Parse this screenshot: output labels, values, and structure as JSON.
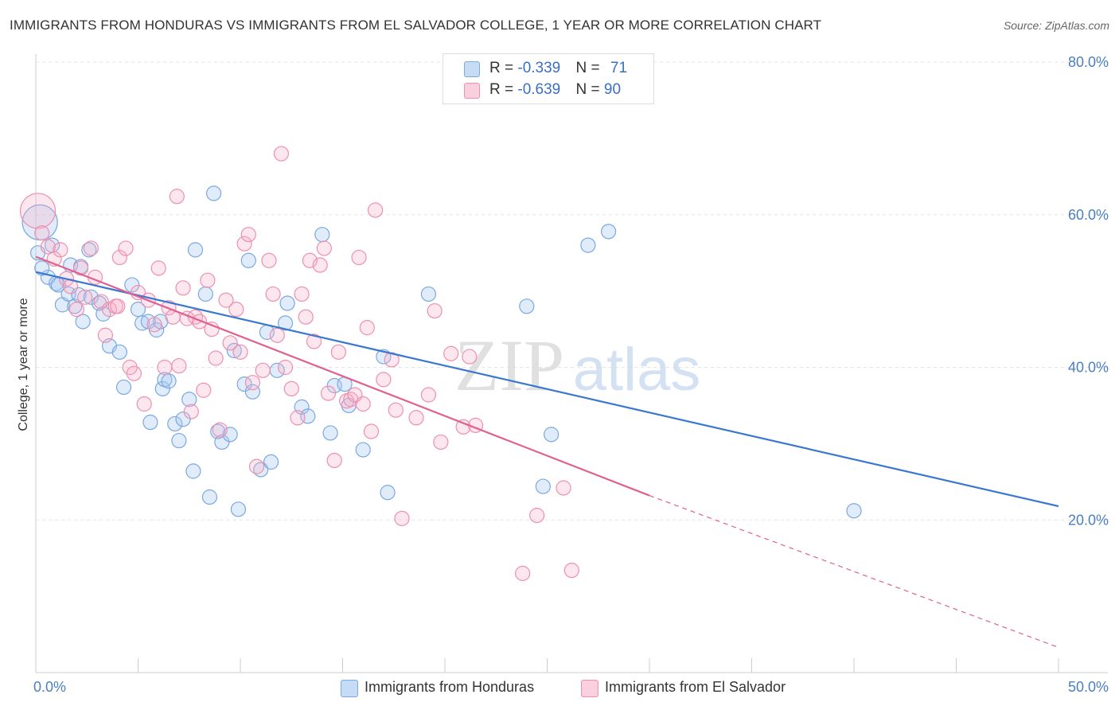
{
  "title": "IMMIGRANTS FROM HONDURAS VS IMMIGRANTS FROM EL SALVADOR COLLEGE, 1 YEAR OR MORE CORRELATION CHART",
  "source": "Source: ZipAtlas.com",
  "watermark": {
    "zip": "ZIP",
    "atlas": "atlas"
  },
  "legend": {
    "rows": [
      {
        "r_label": "R = ",
        "r_value": "-0.339",
        "n_label": "N = ",
        "n_value": "71",
        "color": "#a8c8f0"
      },
      {
        "r_label": "R = ",
        "r_value": "-0.639",
        "n_label": "N = ",
        "n_value": "90",
        "color": "#f5b0c8"
      }
    ]
  },
  "bottom_legend": [
    "Immigrants from Honduras",
    "Immigrants from El Salvador"
  ],
  "chart_data": {
    "type": "scatter",
    "xlabel": "",
    "ylabel": "College, 1 year or more",
    "xlim": [
      0,
      50
    ],
    "ylim": [
      0,
      80
    ],
    "x_tick_labels": [
      "0.0%",
      "50.0%"
    ],
    "y_ticks": [
      20,
      40,
      60,
      80
    ],
    "y_tick_labels": [
      "20.0%",
      "40.0%",
      "60.0%",
      "80.0%"
    ],
    "grid": true,
    "series": [
      {
        "name": "Immigrants from Honduras",
        "color": "#a8c8f0",
        "line_color": "#3a78d0",
        "trend": {
          "x": [
            0,
            50
          ],
          "y": [
            52.5,
            21.8
          ]
        },
        "points": [
          [
            0.2,
            59.0
          ],
          [
            0.6,
            51.8
          ],
          [
            0.8,
            56.0
          ],
          [
            1.0,
            51.0
          ],
          [
            1.1,
            50.8
          ],
          [
            1.3,
            48.2
          ],
          [
            1.6,
            49.6
          ],
          [
            1.7,
            53.4
          ],
          [
            1.9,
            48.0
          ],
          [
            2.1,
            49.5
          ],
          [
            2.2,
            53.2
          ],
          [
            2.3,
            46.0
          ],
          [
            2.6,
            55.4
          ],
          [
            2.7,
            49.2
          ],
          [
            3.1,
            48.4
          ],
          [
            3.3,
            47.0
          ],
          [
            3.6,
            42.8
          ],
          [
            4.1,
            42.0
          ],
          [
            4.3,
            37.4
          ],
          [
            4.7,
            50.8
          ],
          [
            5.0,
            47.6
          ],
          [
            5.2,
            45.8
          ],
          [
            5.5,
            46.0
          ],
          [
            5.6,
            32.8
          ],
          [
            5.9,
            44.9
          ],
          [
            6.1,
            46.0
          ],
          [
            6.2,
            37.2
          ],
          [
            6.3,
            38.4
          ],
          [
            6.5,
            38.2
          ],
          [
            6.8,
            32.6
          ],
          [
            7.0,
            30.4
          ],
          [
            7.2,
            33.2
          ],
          [
            7.5,
            35.8
          ],
          [
            7.7,
            26.4
          ],
          [
            7.8,
            55.4
          ],
          [
            8.3,
            49.6
          ],
          [
            8.5,
            23.0
          ],
          [
            8.7,
            62.8
          ],
          [
            8.9,
            31.6
          ],
          [
            9.1,
            30.2
          ],
          [
            9.5,
            31.2
          ],
          [
            9.7,
            42.2
          ],
          [
            9.9,
            21.4
          ],
          [
            10.2,
            37.8
          ],
          [
            10.4,
            54.0
          ],
          [
            10.6,
            36.8
          ],
          [
            11.0,
            26.6
          ],
          [
            11.3,
            44.6
          ],
          [
            11.5,
            27.6
          ],
          [
            11.8,
            39.6
          ],
          [
            12.2,
            45.8
          ],
          [
            12.3,
            48.4
          ],
          [
            13.0,
            34.8
          ],
          [
            13.3,
            33.6
          ],
          [
            14.0,
            57.4
          ],
          [
            14.4,
            31.4
          ],
          [
            14.6,
            37.6
          ],
          [
            15.1,
            37.8
          ],
          [
            15.3,
            35.0
          ],
          [
            16.0,
            29.2
          ],
          [
            17.0,
            41.4
          ],
          [
            17.2,
            23.6
          ],
          [
            19.2,
            49.6
          ],
          [
            24.0,
            48.0
          ],
          [
            24.8,
            24.4
          ],
          [
            25.2,
            31.2
          ],
          [
            27.0,
            56.0
          ],
          [
            28.0,
            57.8
          ],
          [
            40.0,
            21.2
          ],
          [
            0.1,
            55.0
          ],
          [
            0.3,
            53.0
          ]
        ]
      },
      {
        "name": "Immigrants from El Salvador",
        "color": "#f5b0c8",
        "line_color": "#e06090",
        "trend": {
          "x": [
            0,
            30
          ],
          "y": [
            54.5,
            23.2
          ]
        },
        "trend_dashed": {
          "x": [
            30,
            50
          ],
          "y": [
            23.2,
            3.3
          ]
        },
        "points": [
          [
            0.1,
            60.5
          ],
          [
            0.3,
            57.6
          ],
          [
            0.6,
            55.8
          ],
          [
            0.9,
            54.2
          ],
          [
            1.2,
            55.4
          ],
          [
            1.5,
            51.6
          ],
          [
            1.7,
            50.6
          ],
          [
            2.0,
            47.6
          ],
          [
            2.2,
            53.0
          ],
          [
            2.4,
            49.2
          ],
          [
            2.7,
            55.6
          ],
          [
            2.9,
            51.8
          ],
          [
            3.2,
            48.6
          ],
          [
            3.4,
            44.2
          ],
          [
            3.6,
            47.6
          ],
          [
            3.9,
            48.0
          ],
          [
            4.1,
            54.4
          ],
          [
            4.4,
            55.6
          ],
          [
            4.6,
            40.0
          ],
          [
            4.8,
            39.2
          ],
          [
            5.0,
            49.8
          ],
          [
            5.3,
            35.2
          ],
          [
            5.5,
            48.8
          ],
          [
            5.8,
            45.6
          ],
          [
            6.0,
            53.0
          ],
          [
            6.3,
            40.0
          ],
          [
            6.5,
            47.8
          ],
          [
            6.7,
            46.6
          ],
          [
            6.9,
            62.4
          ],
          [
            7.0,
            40.2
          ],
          [
            7.2,
            50.4
          ],
          [
            7.4,
            46.4
          ],
          [
            7.6,
            34.2
          ],
          [
            7.8,
            46.6
          ],
          [
            8.0,
            46.0
          ],
          [
            8.2,
            37.0
          ],
          [
            8.4,
            51.4
          ],
          [
            8.6,
            45.0
          ],
          [
            8.8,
            41.2
          ],
          [
            9.0,
            31.8
          ],
          [
            9.3,
            48.8
          ],
          [
            9.5,
            43.2
          ],
          [
            9.8,
            47.6
          ],
          [
            10.0,
            42.0
          ],
          [
            10.2,
            56.2
          ],
          [
            10.4,
            57.4
          ],
          [
            10.6,
            38.0
          ],
          [
            10.8,
            27.0
          ],
          [
            11.1,
            39.6
          ],
          [
            11.4,
            54.0
          ],
          [
            11.6,
            49.6
          ],
          [
            11.8,
            44.2
          ],
          [
            12.0,
            68.0
          ],
          [
            12.2,
            40.0
          ],
          [
            12.5,
            37.2
          ],
          [
            12.8,
            33.4
          ],
          [
            13.0,
            49.6
          ],
          [
            13.2,
            46.6
          ],
          [
            13.4,
            54.0
          ],
          [
            13.6,
            43.4
          ],
          [
            13.9,
            53.4
          ],
          [
            14.1,
            55.6
          ],
          [
            14.3,
            36.6
          ],
          [
            14.6,
            27.8
          ],
          [
            14.8,
            42.0
          ],
          [
            15.2,
            35.6
          ],
          [
            15.4,
            35.8
          ],
          [
            15.6,
            36.4
          ],
          [
            15.8,
            54.4
          ],
          [
            16.0,
            35.2
          ],
          [
            16.2,
            45.2
          ],
          [
            16.4,
            31.6
          ],
          [
            16.6,
            60.6
          ],
          [
            17.0,
            38.4
          ],
          [
            17.4,
            41.0
          ],
          [
            17.6,
            34.4
          ],
          [
            17.9,
            20.2
          ],
          [
            18.6,
            33.4
          ],
          [
            19.2,
            36.4
          ],
          [
            19.5,
            47.4
          ],
          [
            19.8,
            30.2
          ],
          [
            20.3,
            41.8
          ],
          [
            20.9,
            32.2
          ],
          [
            21.2,
            41.4
          ],
          [
            21.5,
            32.4
          ],
          [
            23.8,
            13.0
          ],
          [
            24.5,
            20.6
          ],
          [
            25.8,
            24.2
          ],
          [
            26.2,
            13.4
          ],
          [
            4.0,
            48.0
          ]
        ]
      }
    ]
  }
}
